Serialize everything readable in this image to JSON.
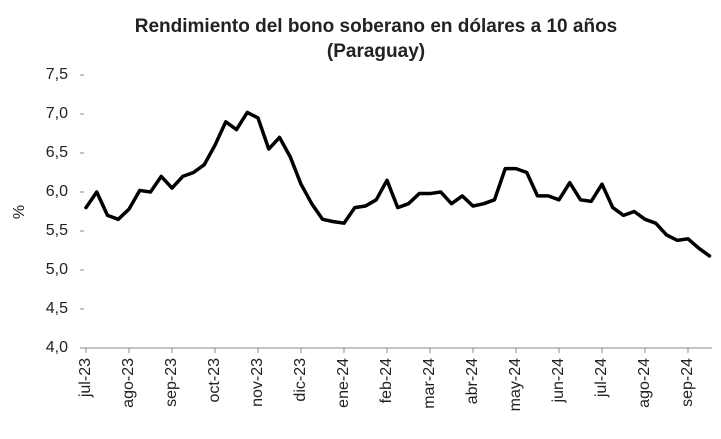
{
  "chart_data": {
    "type": "line",
    "title": "Rendimiento del bono soberano en dólares a 10 años",
    "subtitle": "(Paraguay)",
    "y_label": "%",
    "categories": [
      "jul-23",
      null,
      null,
      null,
      "ago-23",
      null,
      null,
      null,
      "sep-23",
      null,
      null,
      null,
      "oct-23",
      null,
      null,
      null,
      "nov-23",
      null,
      null,
      null,
      "dic-23",
      null,
      null,
      null,
      "ene-24",
      null,
      null,
      null,
      "feb-24",
      null,
      null,
      null,
      "mar-24",
      null,
      null,
      null,
      "abr-24",
      null,
      null,
      null,
      "may-24",
      null,
      null,
      null,
      "jun-24",
      null,
      null,
      null,
      "jul-24",
      null,
      null,
      null,
      "ago-24",
      null,
      null,
      null,
      "sep-24",
      null,
      null
    ],
    "values": [
      5.8,
      6.0,
      5.7,
      5.65,
      5.78,
      6.02,
      6.0,
      6.2,
      6.05,
      6.2,
      6.25,
      6.35,
      6.6,
      6.9,
      6.8,
      7.02,
      6.95,
      6.55,
      6.7,
      6.45,
      6.1,
      5.85,
      5.65,
      5.62,
      5.6,
      5.8,
      5.82,
      5.9,
      6.15,
      5.8,
      5.85,
      5.98,
      5.98,
      6.0,
      5.85,
      5.95,
      5.82,
      5.85,
      5.9,
      6.3,
      6.3,
      6.25,
      5.95,
      5.95,
      5.9,
      6.12,
      5.9,
      5.88,
      6.1,
      5.8,
      5.7,
      5.75,
      5.65,
      5.6,
      5.45,
      5.38,
      5.4,
      5.28,
      5.18
    ],
    "color": "#000000",
    "ylim": [
      4.0,
      7.5
    ],
    "yticks": [
      {
        "value": 4.0,
        "label": "4,0"
      },
      {
        "value": 4.5,
        "label": "4,5"
      },
      {
        "value": 5.0,
        "label": "5,0"
      },
      {
        "value": 5.5,
        "label": "5,5"
      },
      {
        "value": 6.0,
        "label": "6,0"
      },
      {
        "value": 6.5,
        "label": "6,5"
      },
      {
        "value": 7.0,
        "label": "7,0"
      },
      {
        "value": 7.5,
        "label": "7,5"
      }
    ],
    "grid": false
  }
}
